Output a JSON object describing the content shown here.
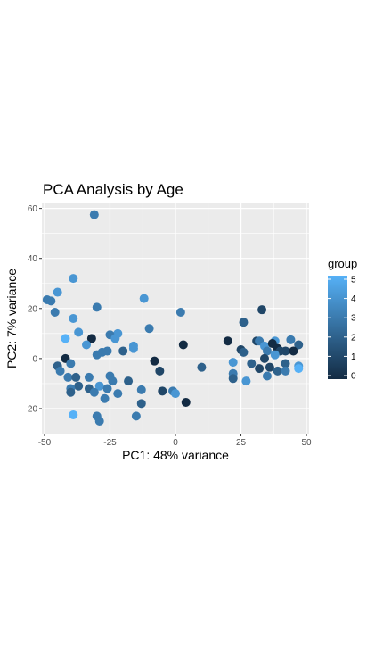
{
  "chart_data": {
    "type": "scatter",
    "title": "PCA Analysis by Age",
    "xlabel": "PC1: 48% variance",
    "ylabel": "PC2: 7% variance",
    "xlim": [
      -51,
      51
    ],
    "ylim": [
      -30,
      62
    ],
    "xticks": [
      -50,
      -25,
      0,
      25,
      50
    ],
    "xtick_labels": [
      "-50",
      "-25",
      "0",
      "25",
      "50"
    ],
    "yticks": [
      -20,
      0,
      20,
      40,
      60
    ],
    "ytick_labels": [
      "-20",
      "0",
      "20",
      "40",
      "60"
    ],
    "grid": true,
    "legend": {
      "title": "group",
      "position": "right",
      "type": "colorbar",
      "range": [
        0,
        5
      ],
      "ticks": [
        0,
        1,
        2,
        3,
        4,
        5
      ],
      "tick_labels": [
        "0",
        "1",
        "2",
        "3",
        "4",
        "5"
      ],
      "low_color": "#132B43",
      "high_color": "#56B1F7"
    },
    "panel_background": "#EBEBEB",
    "grid_color": "#FFFFFF",
    "points": [
      {
        "x": -31,
        "y": 57.5,
        "group": 3
      },
      {
        "x": -39,
        "y": 32,
        "group": 4
      },
      {
        "x": -45,
        "y": 26.5,
        "group": 4
      },
      {
        "x": -49,
        "y": 23.5,
        "group": 3
      },
      {
        "x": -47.5,
        "y": 23,
        "group": 3
      },
      {
        "x": -12,
        "y": 24,
        "group": 4
      },
      {
        "x": -30,
        "y": 20.5,
        "group": 3
      },
      {
        "x": -46,
        "y": 18.5,
        "group": 3
      },
      {
        "x": 2,
        "y": 18.5,
        "group": 3
      },
      {
        "x": -39,
        "y": 16,
        "group": 4
      },
      {
        "x": -10,
        "y": 12,
        "group": 3
      },
      {
        "x": -37,
        "y": 10.5,
        "group": 4
      },
      {
        "x": -22,
        "y": 10,
        "group": 4
      },
      {
        "x": -25,
        "y": 9.5,
        "group": 3
      },
      {
        "x": -42,
        "y": 8,
        "group": 5
      },
      {
        "x": -32,
        "y": 8,
        "group": 0
      },
      {
        "x": -23,
        "y": 8,
        "group": 4
      },
      {
        "x": -34,
        "y": 5.5,
        "group": 4
      },
      {
        "x": -16,
        "y": 5,
        "group": 4
      },
      {
        "x": 3,
        "y": 5.5,
        "group": 0
      },
      {
        "x": -16,
        "y": 4,
        "group": 4
      },
      {
        "x": -28,
        "y": 2.5,
        "group": 3
      },
      {
        "x": -26,
        "y": 3,
        "group": 3
      },
      {
        "x": -20,
        "y": 3,
        "group": 2
      },
      {
        "x": -30,
        "y": 1.5,
        "group": 3
      },
      {
        "x": -42,
        "y": 0,
        "group": 0
      },
      {
        "x": -8,
        "y": -1,
        "group": 0
      },
      {
        "x": -45,
        "y": -3,
        "group": 2
      },
      {
        "x": -40,
        "y": -2,
        "group": 3
      },
      {
        "x": -44,
        "y": -5,
        "group": 3
      },
      {
        "x": -6,
        "y": -5,
        "group": 1
      },
      {
        "x": -41,
        "y": -7.5,
        "group": 3
      },
      {
        "x": -38,
        "y": -7.5,
        "group": 2
      },
      {
        "x": -33,
        "y": -7.5,
        "group": 3
      },
      {
        "x": -25,
        "y": -7,
        "group": 3
      },
      {
        "x": -24,
        "y": -9,
        "group": 3
      },
      {
        "x": -18,
        "y": -9,
        "group": 2
      },
      {
        "x": -37,
        "y": -11,
        "group": 2
      },
      {
        "x": -29,
        "y": -11,
        "group": 4
      },
      {
        "x": -40,
        "y": -12,
        "group": 3
      },
      {
        "x": -33,
        "y": -12,
        "group": 2
      },
      {
        "x": -26,
        "y": -12,
        "group": 3
      },
      {
        "x": -13,
        "y": -12.5,
        "group": 3
      },
      {
        "x": -40,
        "y": -13.5,
        "group": 2
      },
      {
        "x": -31,
        "y": -13.5,
        "group": 3
      },
      {
        "x": -22,
        "y": -14,
        "group": 3
      },
      {
        "x": -5,
        "y": -13,
        "group": 1
      },
      {
        "x": -1,
        "y": -13,
        "group": 3
      },
      {
        "x": 0,
        "y": -14,
        "group": 4
      },
      {
        "x": -27,
        "y": -16,
        "group": 3
      },
      {
        "x": -13,
        "y": -18,
        "group": 2
      },
      {
        "x": 4,
        "y": -17.5,
        "group": 0
      },
      {
        "x": -39,
        "y": -22.5,
        "group": 5
      },
      {
        "x": -30,
        "y": -23,
        "group": 3
      },
      {
        "x": -15,
        "y": -23,
        "group": 3
      },
      {
        "x": -29,
        "y": -25,
        "group": 3
      },
      {
        "x": 33,
        "y": 19.5,
        "group": 1
      },
      {
        "x": 26,
        "y": 14.5,
        "group": 2
      },
      {
        "x": 20,
        "y": 7,
        "group": 0
      },
      {
        "x": 31,
        "y": 7,
        "group": 1
      },
      {
        "x": 32,
        "y": 7,
        "group": 3
      },
      {
        "x": 38,
        "y": 7,
        "group": 4
      },
      {
        "x": 44,
        "y": 7.5,
        "group": 3
      },
      {
        "x": 47,
        "y": 5.5,
        "group": 2
      },
      {
        "x": 34,
        "y": 5,
        "group": 4
      },
      {
        "x": 37,
        "y": 6,
        "group": 0
      },
      {
        "x": 39,
        "y": 4,
        "group": 0
      },
      {
        "x": 42,
        "y": 3,
        "group": 1
      },
      {
        "x": 25,
        "y": 3.5,
        "group": 1
      },
      {
        "x": 35,
        "y": 3,
        "group": 3
      },
      {
        "x": 40,
        "y": 3,
        "group": 1
      },
      {
        "x": 45,
        "y": 3,
        "group": 0
      },
      {
        "x": 26,
        "y": 2.5,
        "group": 2
      },
      {
        "x": 38,
        "y": 1.5,
        "group": 4
      },
      {
        "x": 34,
        "y": 0,
        "group": 1
      },
      {
        "x": 22,
        "y": -1.5,
        "group": 4
      },
      {
        "x": 29,
        "y": -2,
        "group": 2
      },
      {
        "x": 42,
        "y": -2,
        "group": 2
      },
      {
        "x": 47,
        "y": -3,
        "group": 4
      },
      {
        "x": 36,
        "y": -3.5,
        "group": 1
      },
      {
        "x": 32,
        "y": -4,
        "group": 1
      },
      {
        "x": 10,
        "y": -3.5,
        "group": 2
      },
      {
        "x": 39,
        "y": -5,
        "group": 2
      },
      {
        "x": 42,
        "y": -5,
        "group": 3
      },
      {
        "x": 47,
        "y": -4,
        "group": 5
      },
      {
        "x": 22,
        "y": -6,
        "group": 3
      },
      {
        "x": 35,
        "y": -7,
        "group": 3
      },
      {
        "x": 22,
        "y": -8,
        "group": 2
      },
      {
        "x": 27,
        "y": -9,
        "group": 4
      }
    ]
  }
}
